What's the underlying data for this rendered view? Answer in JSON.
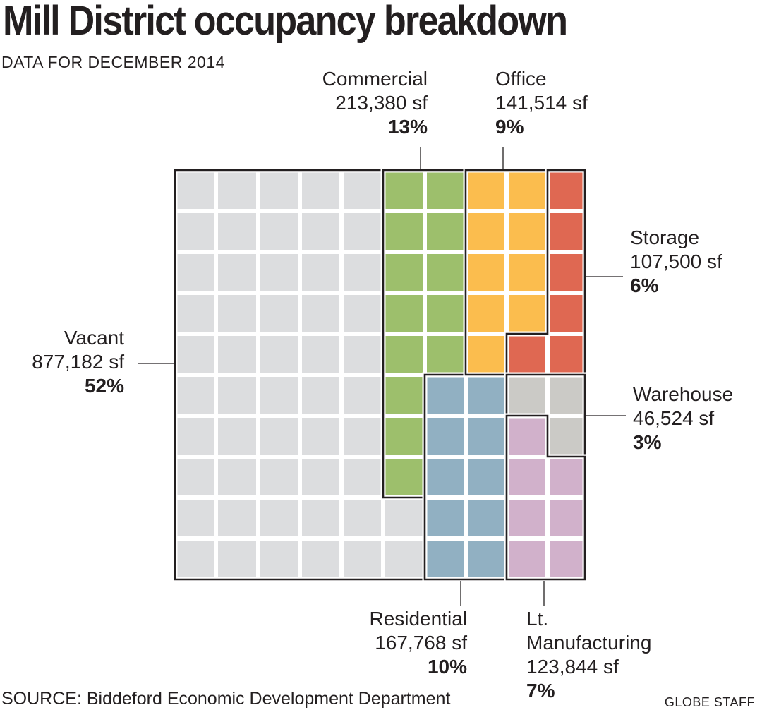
{
  "header": {
    "title": "Mill District occupancy breakdown",
    "subtitle": "DATA FOR DECEMBER 2014"
  },
  "footer": {
    "source": "SOURCE: Biddeford Economic Development Department",
    "credit": "GLOBE STAFF"
  },
  "chart_data": {
    "type": "waffle",
    "unit": "sf",
    "series": [
      {
        "name": "Vacant",
        "value": 877182,
        "value_label": "877,182 sf",
        "percent": 52,
        "percent_label": "52%",
        "color": "#dcdddf"
      },
      {
        "name": "Commercial",
        "value": 213380,
        "value_label": "213,380 sf",
        "percent": 13,
        "percent_label": "13%",
        "color": "#9dbf6c"
      },
      {
        "name": "Residential",
        "value": 167768,
        "value_label": "167,768 sf",
        "percent": 10,
        "percent_label": "10%",
        "color": "#91b0c2"
      },
      {
        "name": "Office",
        "value": 141514,
        "value_label": "141,514 sf",
        "percent": 9,
        "percent_label": "9%",
        "color": "#fbbd4e"
      },
      {
        "name": "Lt. Manufacturing",
        "value": 123844,
        "value_label": "123,844 sf",
        "percent": 7,
        "percent_label": "7%",
        "color": "#d1b1cb"
      },
      {
        "name": "Storage",
        "value": 107500,
        "value_label": "107,500 sf",
        "percent": 6,
        "percent_label": "6%",
        "color": "#df6852"
      },
      {
        "name": "Warehouse",
        "value": 46524,
        "value_label": "46,524 sf",
        "percent": 3,
        "percent_label": "3%",
        "color": "#cbcac6"
      }
    ]
  }
}
